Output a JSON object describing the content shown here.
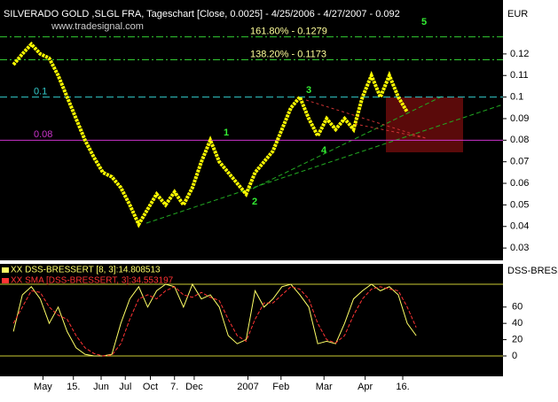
{
  "chart_data": {
    "type": "line",
    "title": "SILVERADO GOLD   ,SLGL FRA, Tageschart [Close, 0.0025] - 4/25/2006 - 4/27/2007 - 0.092",
    "source": "www.tradesignal.com",
    "y_axis_label": "EUR",
    "xlim": [
      -1.5,
      54.7
    ],
    "xticks": [
      {
        "value": 3.3,
        "label": "May"
      },
      {
        "value": 6.7,
        "label": "15."
      },
      {
        "value": 9.8,
        "label": "Jun"
      },
      {
        "value": 12.5,
        "label": "Jul"
      },
      {
        "value": 15.3,
        "label": "Oct"
      },
      {
        "value": 18,
        "label": "7."
      },
      {
        "value": 20.2,
        "label": "Dec"
      },
      {
        "value": 26.2,
        "label": "2007"
      },
      {
        "value": 29.9,
        "label": "Feb"
      },
      {
        "value": 34.7,
        "label": "Mar"
      },
      {
        "value": 39.3,
        "label": "Apr"
      },
      {
        "value": 43.5,
        "label": "16."
      }
    ],
    "ylim": [
      0.0243,
      0.145
    ],
    "yticks": [
      0.12,
      0.11,
      0.1,
      0.09,
      0.08,
      0.07,
      0.06,
      0.05,
      0.04,
      0.03
    ],
    "series": [
      {
        "name": "SILVERADO GOLD",
        "color": "#ffff00",
        "values": [
          0.115,
          0.12,
          0.1245,
          0.12,
          0.118,
          0.11,
          0.1,
          0.09,
          0.08,
          0.072,
          0.065,
          0.063,
          0.058,
          0.05,
          0.041,
          0.048,
          0.055,
          0.05,
          0.056,
          0.05,
          0.058,
          0.07,
          0.08,
          0.07,
          0.065,
          0.06,
          0.055,
          0.065,
          0.07,
          0.075,
          0.085,
          0.095,
          0.1,
          0.09,
          0.082,
          0.09,
          0.085,
          0.09,
          0.085,
          0.1,
          0.11,
          0.1,
          0.11,
          0.1,
          0.093,
          null
        ]
      }
    ],
    "levels": [
      {
        "value": 0.1279,
        "label": "161.80% - 0.1279",
        "color": "#33cc33"
      },
      {
        "value": 0.1173,
        "label": "138.20% - 0.1173",
        "color": "#33cc33"
      },
      {
        "value": 0.1,
        "label": "0.1",
        "color": "#33cccc"
      },
      {
        "value": 0.08,
        "label": "0.08",
        "color": "#cc33cc"
      }
    ],
    "annotations": [
      "1",
      "2",
      "3",
      "4",
      "5"
    ],
    "oscillator": {
      "axis_label": "DSS-BRESSI",
      "ylim": [
        -25,
        113
      ],
      "yticks": [
        60,
        40,
        20,
        0
      ],
      "hlines": [
        0,
        88
      ],
      "series": [
        {
          "name": "XX DSS-BRESSERT [8, 3]:14.808513",
          "color": "#ffff66",
          "values": [
            30,
            75,
            85,
            70,
            40,
            60,
            30,
            10,
            2,
            0,
            0,
            2,
            40,
            70,
            85,
            60,
            80,
            88,
            85,
            60,
            88,
            70,
            75,
            60,
            25,
            15,
            20,
            80,
            60,
            70,
            85,
            88,
            75,
            60,
            15,
            18,
            15,
            40,
            70,
            80,
            88,
            80,
            85,
            75,
            40,
            25
          ]
        },
        {
          "name": "XX SMA [DSS-BRESSERT, 3]:34.553197",
          "color": "#ff3333",
          "values": [
            40,
            60,
            80,
            78,
            60,
            50,
            45,
            25,
            10,
            3,
            0,
            1,
            15,
            45,
            70,
            75,
            70,
            80,
            85,
            75,
            72,
            78,
            72,
            68,
            45,
            25,
            18,
            45,
            65,
            65,
            75,
            85,
            82,
            70,
            40,
            20,
            16,
            25,
            50,
            70,
            82,
            85,
            82,
            80,
            60,
            35
          ]
        }
      ]
    }
  }
}
